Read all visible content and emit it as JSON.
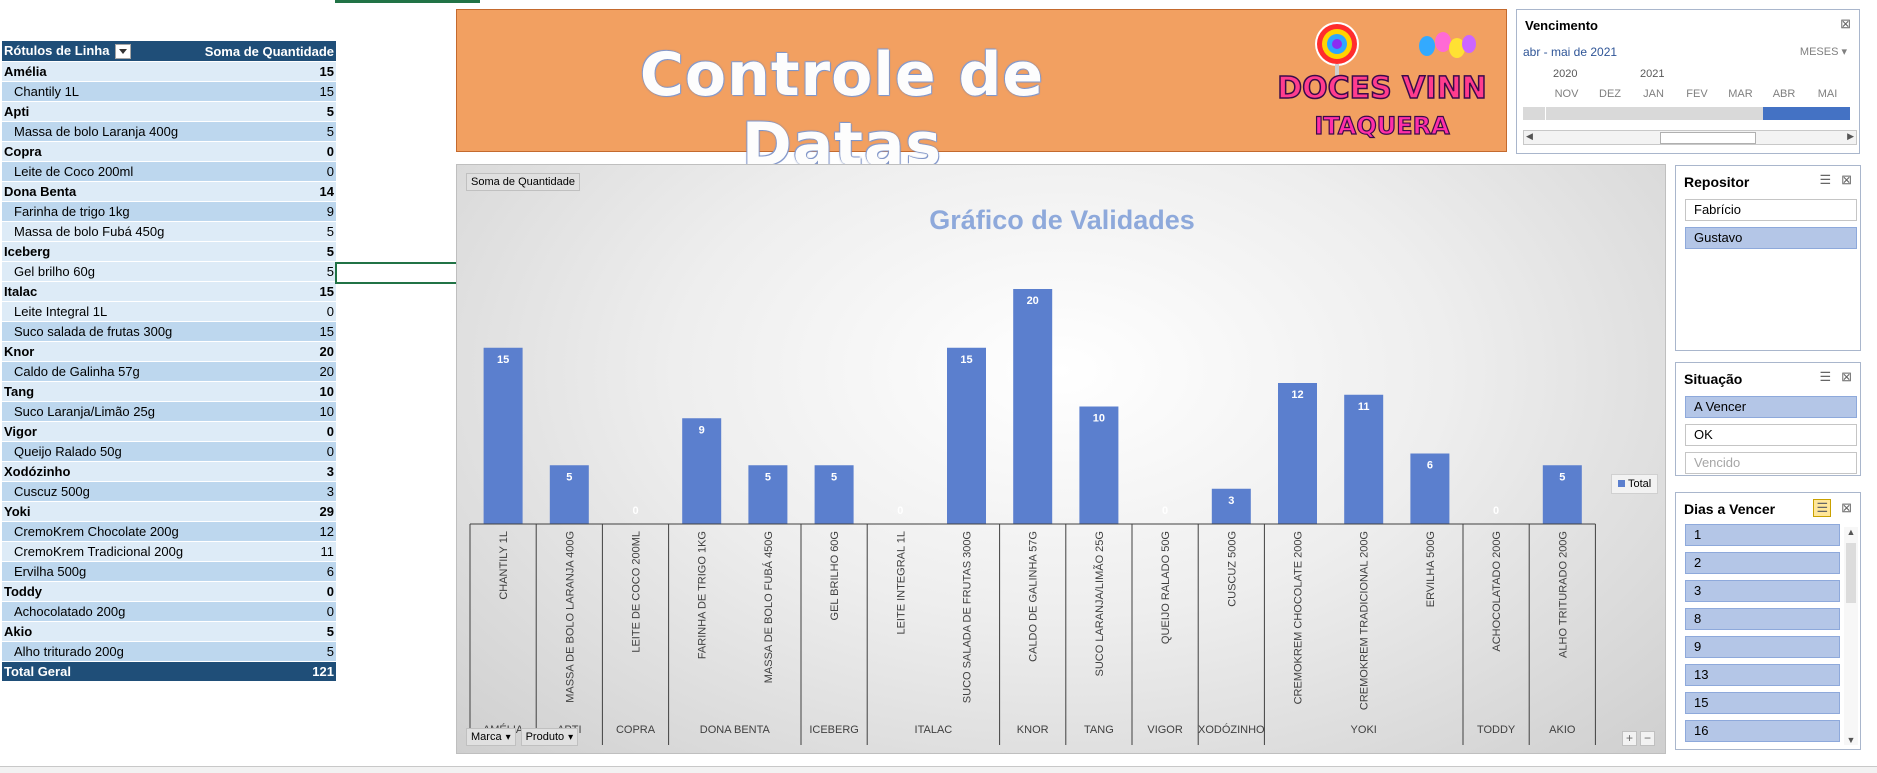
{
  "pivot": {
    "header": {
      "rows_label": "Rótulos de Linha",
      "sum_label": "Soma de Quantidade"
    },
    "rows": [
      {
        "kind": "grp",
        "label": "Amélia",
        "value": "15"
      },
      {
        "kind": "item",
        "label": "Chantily 1L",
        "value": "15"
      },
      {
        "kind": "grp",
        "label": "Apti",
        "value": "5"
      },
      {
        "kind": "item",
        "label": "Massa de bolo Laranja 400g",
        "value": "5"
      },
      {
        "kind": "grp",
        "label": "Copra",
        "value": "0"
      },
      {
        "kind": "item",
        "label": "Leite de Coco 200ml",
        "value": "0"
      },
      {
        "kind": "grp",
        "label": "Dona Benta",
        "value": "14"
      },
      {
        "kind": "item",
        "label": "Farinha de trigo 1kg",
        "value": "9"
      },
      {
        "kind": "item",
        "label": "Massa de bolo Fubá 450g",
        "value": "5"
      },
      {
        "kind": "grp",
        "label": "Iceberg",
        "value": "5"
      },
      {
        "kind": "item",
        "label": "Gel brilho 60g",
        "value": "5"
      },
      {
        "kind": "grp",
        "label": "Italac",
        "value": "15"
      },
      {
        "kind": "item",
        "label": "Leite Integral 1L",
        "value": "0"
      },
      {
        "kind": "item",
        "label": "Suco salada de frutas 300g",
        "value": "15"
      },
      {
        "kind": "grp",
        "label": "Knor",
        "value": "20"
      },
      {
        "kind": "item",
        "label": "Caldo de Galinha 57g",
        "value": "20"
      },
      {
        "kind": "grp",
        "label": "Tang",
        "value": "10"
      },
      {
        "kind": "item",
        "label": "Suco Laranja/Limão 25g",
        "value": "10"
      },
      {
        "kind": "grp",
        "label": "Vigor",
        "value": "0"
      },
      {
        "kind": "item",
        "label": "Queijo Ralado 50g",
        "value": "0"
      },
      {
        "kind": "grp",
        "label": "Xodózinho",
        "value": "3"
      },
      {
        "kind": "item",
        "label": "Cuscuz 500g",
        "value": "3"
      },
      {
        "kind": "grp",
        "label": "Yoki",
        "value": "29"
      },
      {
        "kind": "item",
        "label": "CremoKrem Chocolate 200g",
        "value": "12"
      },
      {
        "kind": "item",
        "label": "CremoKrem Tradicional 200g",
        "value": "11"
      },
      {
        "kind": "item",
        "label": "Ervilha 500g",
        "value": "6"
      },
      {
        "kind": "grp",
        "label": "Toddy",
        "value": "0"
      },
      {
        "kind": "item",
        "label": "Achocolatado 200g",
        "value": "0"
      },
      {
        "kind": "grp",
        "label": "Akio",
        "value": "5"
      },
      {
        "kind": "item",
        "label": "Alho triturado 200g",
        "value": "5"
      }
    ],
    "total": {
      "label": "Total Geral",
      "value": "121"
    }
  },
  "banner": {
    "title": "Controle de Datas",
    "logo_line1": "DOCES VINN",
    "logo_line2": "ITAQUERA",
    "bg_color": "#f2a061"
  },
  "chart_data": {
    "type": "bar",
    "field_label": "Soma de Quantidade",
    "title": "Gráfico de Validades",
    "categories": [
      "CHANTILY 1L",
      "MASSA DE BOLO LARANJA 400G",
      "LEITE DE COCO 200ML",
      "FARINHA DE TRIGO 1KG",
      "MASSA DE BOLO FUBÁ 450G",
      "GEL BRILHO 60G",
      "LEITE INTEGRAL 1L",
      "SUCO SALADA DE FRUTAS 300G",
      "CALDO DE GALINHA 57G",
      "SUCO LARANJA/LIMÃO 25G",
      "QUEIJO RALADO 50G",
      "CUSCUZ 500G",
      "CREMOKREM CHOCOLATE 200G",
      "CREMOKREM TRADICIONAL 200G",
      "ERVILHA 500G",
      "ACHOCOLATADO 200G",
      "ALHO TRITURADO 200G"
    ],
    "groups": [
      {
        "name": "AMÉLIA",
        "count": 1
      },
      {
        "name": "APTI",
        "count": 1
      },
      {
        "name": "COPRA",
        "count": 1
      },
      {
        "name": "DONA BENTA",
        "count": 2
      },
      {
        "name": "ICEBERG",
        "count": 1
      },
      {
        "name": "ITALAC",
        "count": 2
      },
      {
        "name": "KNOR",
        "count": 1
      },
      {
        "name": "TANG",
        "count": 1
      },
      {
        "name": "VIGOR",
        "count": 1
      },
      {
        "name": "XODÓZINHO",
        "count": 1
      },
      {
        "name": "YOKI",
        "count": 3
      },
      {
        "name": "TODDY",
        "count": 1
      },
      {
        "name": "AKIO",
        "count": 1
      }
    ],
    "series": [
      {
        "name": "Total",
        "values": [
          15,
          5,
          0,
          9,
          5,
          5,
          0,
          15,
          20,
          10,
          0,
          3,
          12,
          11,
          6,
          0,
          5
        ]
      }
    ],
    "ylim": [
      0,
      20
    ],
    "legend_position": "right",
    "bar_color": "#5b7fce",
    "field_buttons": [
      "Marca",
      "Produto"
    ]
  },
  "timeline": {
    "title": "Vencimento",
    "range": "abr - mai de 2021",
    "level": "MESES",
    "years": [
      "2020",
      "2021"
    ],
    "months": [
      "NOV",
      "DEZ",
      "JAN",
      "FEV",
      "MAR",
      "ABR",
      "MAI"
    ],
    "selected": [
      "ABR",
      "MAI"
    ]
  },
  "slicer_repositor": {
    "title": "Repositor",
    "items": [
      {
        "label": "Fabrício",
        "state": "off"
      },
      {
        "label": "Gustavo",
        "state": "on"
      }
    ]
  },
  "slicer_situacao": {
    "title": "Situação",
    "items": [
      {
        "label": "A Vencer",
        "state": "on"
      },
      {
        "label": "OK",
        "state": "off"
      },
      {
        "label": "Vencido",
        "state": "dim"
      }
    ]
  },
  "slicer_dias": {
    "title": "Dias a Vencer",
    "items": [
      {
        "label": "1",
        "state": "on"
      },
      {
        "label": "2",
        "state": "on"
      },
      {
        "label": "3",
        "state": "on"
      },
      {
        "label": "8",
        "state": "on"
      },
      {
        "label": "9",
        "state": "on"
      },
      {
        "label": "13",
        "state": "on"
      },
      {
        "label": "15",
        "state": "on"
      },
      {
        "label": "16",
        "state": "on"
      }
    ]
  }
}
